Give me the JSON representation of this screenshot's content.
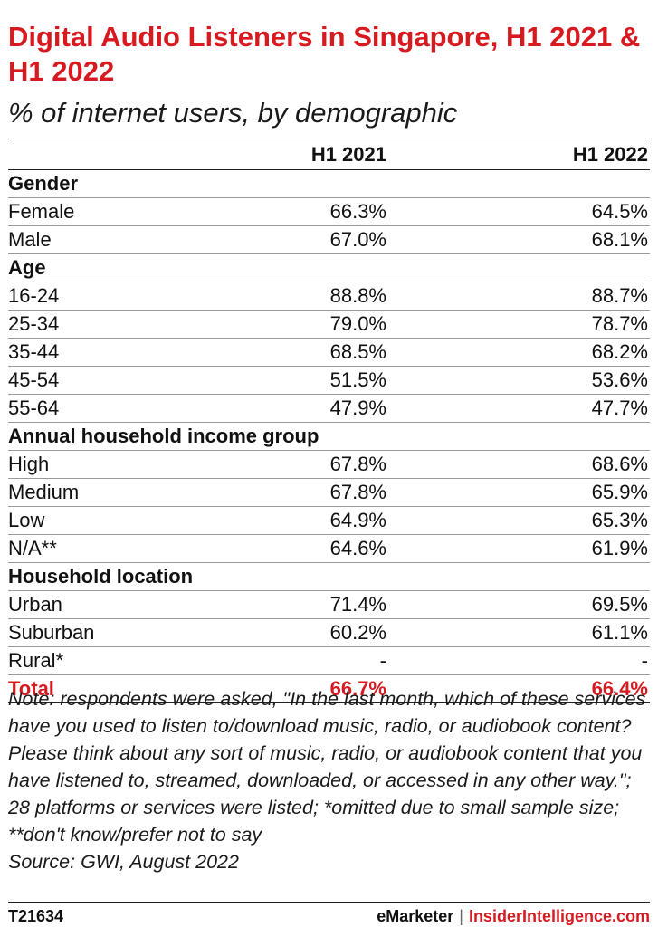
{
  "header": {
    "title": "Digital Audio Listeners in Singapore, H1 2021 & H1 2022",
    "subtitle": "% of internet users, by demographic"
  },
  "colors": {
    "accent": "#d71920",
    "text": "#111111",
    "rule": "#222222"
  },
  "chart_data": {
    "type": "table",
    "title": "Digital Audio Listeners in Singapore, H1 2021 & H1 2022",
    "subtitle": "% of internet users, by demographic",
    "columns": [
      "",
      "H1 2021",
      "H1 2022"
    ],
    "rows": [
      {
        "kind": "section",
        "label": "Gender"
      },
      {
        "kind": "data",
        "label": "Female",
        "values": [
          "66.3%",
          "64.5%"
        ]
      },
      {
        "kind": "data",
        "label": "Male",
        "values": [
          "67.0%",
          "68.1%"
        ]
      },
      {
        "kind": "section",
        "label": "Age"
      },
      {
        "kind": "data",
        "label": "16-24",
        "values": [
          "88.8%",
          "88.7%"
        ]
      },
      {
        "kind": "data",
        "label": "25-34",
        "values": [
          "79.0%",
          "78.7%"
        ]
      },
      {
        "kind": "data",
        "label": "35-44",
        "values": [
          "68.5%",
          "68.2%"
        ]
      },
      {
        "kind": "data",
        "label": "45-54",
        "values": [
          "51.5%",
          "53.6%"
        ]
      },
      {
        "kind": "data",
        "label": "55-64",
        "values": [
          "47.9%",
          "47.7%"
        ]
      },
      {
        "kind": "section",
        "label": "Annual household income group"
      },
      {
        "kind": "data",
        "label": "High",
        "values": [
          "67.8%",
          "68.6%"
        ]
      },
      {
        "kind": "data",
        "label": "Medium",
        "values": [
          "67.8%",
          "65.9%"
        ]
      },
      {
        "kind": "data",
        "label": "Low",
        "values": [
          "64.9%",
          "65.3%"
        ]
      },
      {
        "kind": "data",
        "label": "N/A**",
        "values": [
          "64.6%",
          "61.9%"
        ]
      },
      {
        "kind": "section",
        "label": "Household location"
      },
      {
        "kind": "data",
        "label": "Urban",
        "values": [
          "71.4%",
          "69.5%"
        ]
      },
      {
        "kind": "data",
        "label": "Suburban",
        "values": [
          "60.2%",
          "61.1%"
        ]
      },
      {
        "kind": "data",
        "label": "Rural*",
        "values": [
          "-",
          "-"
        ]
      },
      {
        "kind": "total",
        "label": "Total",
        "values": [
          "66.7%",
          "66.4%"
        ]
      }
    ]
  },
  "note": "Note: respondents were asked, \"In the last month, which of these services have you used to listen to/download music, radio, or audiobook content? Please think about any sort of music, radio, or audiobook content that you have listened to, streamed, downloaded, or accessed in any other way.\"; 28 platforms or services were listed; *omitted due to small sample size; **don't know/prefer not to say",
  "source": "Source: GWI, August 2022",
  "footer": {
    "chart_id": "T21634",
    "brand_primary": "eMarketer",
    "separator": "|",
    "brand_secondary": "InsiderIntelligence.com"
  }
}
